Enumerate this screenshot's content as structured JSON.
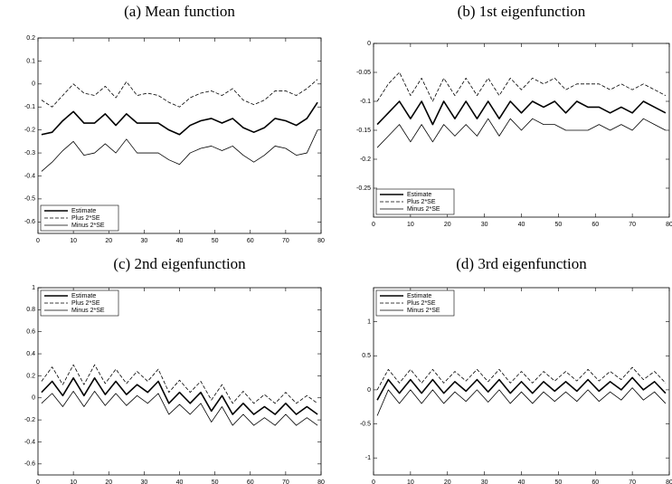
{
  "chart_data": [
    {
      "type": "line",
      "title": "(a) Mean function",
      "x": [
        1,
        4,
        7,
        10,
        13,
        16,
        19,
        22,
        25,
        28,
        31,
        34,
        37,
        40,
        43,
        46,
        49,
        52,
        55,
        58,
        61,
        64,
        67,
        70,
        73,
        76,
        79
      ],
      "xlim": [
        0,
        80
      ],
      "xticks": [
        0,
        10,
        20,
        30,
        40,
        50,
        60,
        70,
        80
      ],
      "ylim": [
        -0.65,
        0.2
      ],
      "yticks": [
        -0.6,
        -0.5,
        -0.4,
        -0.3,
        -0.2,
        -0.1,
        0,
        0.1,
        0.2
      ],
      "legend": "lower left",
      "series": [
        {
          "name": "Estimate",
          "color": "#000000",
          "line_style": "solid",
          "line_width": 1.6,
          "values": [
            -0.22,
            -0.21,
            -0.16,
            -0.12,
            -0.17,
            -0.17,
            -0.13,
            -0.18,
            -0.13,
            -0.17,
            -0.17,
            -0.17,
            -0.2,
            -0.22,
            -0.18,
            -0.16,
            -0.15,
            -0.17,
            -0.15,
            -0.19,
            -0.21,
            -0.19,
            -0.15,
            -0.16,
            -0.18,
            -0.15,
            -0.08
          ]
        },
        {
          "name": "Plus 2*SE",
          "color": "#000000",
          "line_style": "dashed",
          "line_width": 0.8,
          "values": [
            -0.07,
            -0.1,
            -0.05,
            0.0,
            -0.04,
            -0.05,
            -0.01,
            -0.06,
            0.01,
            -0.05,
            -0.04,
            -0.05,
            -0.08,
            -0.1,
            -0.06,
            -0.04,
            -0.03,
            -0.05,
            -0.02,
            -0.07,
            -0.09,
            -0.07,
            -0.03,
            -0.03,
            -0.05,
            -0.02,
            0.02
          ]
        },
        {
          "name": "Minus 2*SE",
          "color": "#000000",
          "line_style": "solid",
          "line_width": 0.8,
          "values": [
            -0.38,
            -0.34,
            -0.29,
            -0.25,
            -0.31,
            -0.3,
            -0.26,
            -0.3,
            -0.24,
            -0.3,
            -0.3,
            -0.3,
            -0.33,
            -0.35,
            -0.3,
            -0.28,
            -0.27,
            -0.29,
            -0.27,
            -0.31,
            -0.34,
            -0.31,
            -0.27,
            -0.28,
            -0.31,
            -0.3,
            -0.2
          ]
        }
      ]
    },
    {
      "type": "line",
      "title": "(b) 1st eigenfunction",
      "x": [
        1,
        4,
        7,
        10,
        13,
        16,
        19,
        22,
        25,
        28,
        31,
        34,
        37,
        40,
        43,
        46,
        49,
        52,
        55,
        58,
        61,
        64,
        67,
        70,
        73,
        76,
        79
      ],
      "xlim": [
        0,
        80
      ],
      "xticks": [
        0,
        10,
        20,
        30,
        40,
        50,
        60,
        70,
        80
      ],
      "ylim": [
        -0.3,
        0
      ],
      "yticks": [
        -0.25,
        -0.2,
        -0.15,
        -0.1,
        -0.05,
        0
      ],
      "legend": "lower left",
      "series": [
        {
          "name": "Estimate",
          "color": "#000000",
          "line_style": "solid",
          "line_width": 1.6,
          "values": [
            -0.14,
            -0.12,
            -0.1,
            -0.13,
            -0.1,
            -0.14,
            -0.1,
            -0.13,
            -0.1,
            -0.13,
            -0.1,
            -0.13,
            -0.1,
            -0.12,
            -0.1,
            -0.11,
            -0.1,
            -0.12,
            -0.1,
            -0.11,
            -0.11,
            -0.12,
            -0.11,
            -0.12,
            -0.1,
            -0.11,
            -0.12
          ]
        },
        {
          "name": "Plus 2*SE",
          "color": "#000000",
          "line_style": "dashed",
          "line_width": 0.8,
          "values": [
            -0.1,
            -0.07,
            -0.05,
            -0.09,
            -0.06,
            -0.1,
            -0.06,
            -0.09,
            -0.06,
            -0.09,
            -0.06,
            -0.09,
            -0.06,
            -0.08,
            -0.06,
            -0.07,
            -0.06,
            -0.08,
            -0.07,
            -0.07,
            -0.07,
            -0.08,
            -0.07,
            -0.08,
            -0.07,
            -0.08,
            -0.09
          ]
        },
        {
          "name": "Minus 2*SE",
          "color": "#000000",
          "line_style": "solid",
          "line_width": 0.8,
          "values": [
            -0.18,
            -0.16,
            -0.14,
            -0.17,
            -0.14,
            -0.17,
            -0.14,
            -0.16,
            -0.14,
            -0.16,
            -0.13,
            -0.16,
            -0.13,
            -0.15,
            -0.13,
            -0.14,
            -0.14,
            -0.15,
            -0.15,
            -0.15,
            -0.14,
            -0.15,
            -0.14,
            -0.15,
            -0.13,
            -0.14,
            -0.15
          ]
        }
      ]
    },
    {
      "type": "line",
      "title": "(c) 2nd eigenfunction",
      "x": [
        1,
        4,
        7,
        10,
        13,
        16,
        19,
        22,
        25,
        28,
        31,
        34,
        37,
        40,
        43,
        46,
        49,
        52,
        55,
        58,
        61,
        64,
        67,
        70,
        73,
        76,
        79
      ],
      "xlim": [
        0,
        80
      ],
      "xticks": [
        0,
        10,
        20,
        30,
        40,
        50,
        60,
        70,
        80
      ],
      "ylim": [
        -0.7,
        1
      ],
      "yticks": [
        -0.6,
        -0.4,
        -0.2,
        0,
        0.2,
        0.4,
        0.6,
        0.8,
        1
      ],
      "legend": "upper left",
      "series": [
        {
          "name": "Estimate",
          "color": "#000000",
          "line_style": "solid",
          "line_width": 1.6,
          "values": [
            0.05,
            0.15,
            0.02,
            0.18,
            0.02,
            0.18,
            0.03,
            0.15,
            0.03,
            0.12,
            0.05,
            0.15,
            -0.05,
            0.05,
            -0.05,
            0.05,
            -0.12,
            0.02,
            -0.15,
            -0.05,
            -0.15,
            -0.08,
            -0.15,
            -0.05,
            -0.15,
            -0.08,
            -0.15
          ]
        },
        {
          "name": "Plus 2*SE",
          "color": "#000000",
          "line_style": "dashed",
          "line_width": 0.8,
          "values": [
            0.15,
            0.28,
            0.12,
            0.3,
            0.12,
            0.3,
            0.13,
            0.26,
            0.13,
            0.24,
            0.15,
            0.26,
            0.05,
            0.16,
            0.05,
            0.15,
            -0.02,
            0.12,
            -0.05,
            0.06,
            -0.05,
            0.03,
            -0.05,
            0.05,
            -0.05,
            0.02,
            -0.05
          ]
        },
        {
          "name": "Minus 2*SE",
          "color": "#000000",
          "line_style": "solid",
          "line_width": 0.8,
          "values": [
            -0.05,
            0.04,
            -0.08,
            0.06,
            -0.08,
            0.06,
            -0.07,
            0.04,
            -0.07,
            0.02,
            -0.05,
            0.04,
            -0.15,
            -0.06,
            -0.15,
            -0.05,
            -0.22,
            -0.08,
            -0.25,
            -0.15,
            -0.25,
            -0.18,
            -0.25,
            -0.15,
            -0.25,
            -0.18,
            -0.25
          ]
        }
      ]
    },
    {
      "type": "line",
      "title": "(d) 3rd eigenfunction",
      "x": [
        1,
        4,
        7,
        10,
        13,
        16,
        19,
        22,
        25,
        28,
        31,
        34,
        37,
        40,
        43,
        46,
        49,
        52,
        55,
        58,
        61,
        64,
        67,
        70,
        73,
        76,
        79
      ],
      "xlim": [
        0,
        80
      ],
      "xticks": [
        0,
        10,
        20,
        30,
        40,
        50,
        60,
        70,
        80
      ],
      "ylim": [
        -1.25,
        1.5
      ],
      "yticks": [
        -1,
        -0.5,
        0,
        0.5,
        1
      ],
      "legend": "upper left",
      "series": [
        {
          "name": "Estimate",
          "color": "#000000",
          "line_style": "solid",
          "line_width": 1.6,
          "values": [
            -0.15,
            0.15,
            -0.05,
            0.15,
            -0.05,
            0.15,
            -0.05,
            0.12,
            -0.02,
            0.15,
            -0.03,
            0.15,
            -0.05,
            0.12,
            -0.05,
            0.12,
            -0.02,
            0.12,
            -0.02,
            0.15,
            -0.02,
            0.12,
            0.0,
            0.18,
            0.0,
            0.12,
            -0.05
          ]
        },
        {
          "name": "Plus 2*SE",
          "color": "#000000",
          "line_style": "dashed",
          "line_width": 0.8,
          "values": [
            0.0,
            0.3,
            0.1,
            0.3,
            0.1,
            0.3,
            0.1,
            0.27,
            0.13,
            0.3,
            0.12,
            0.3,
            0.1,
            0.27,
            0.1,
            0.27,
            0.13,
            0.27,
            0.13,
            0.3,
            0.13,
            0.27,
            0.15,
            0.33,
            0.15,
            0.27,
            0.1
          ]
        },
        {
          "name": "Minus 2*SE",
          "color": "#000000",
          "line_style": "solid",
          "line_width": 0.8,
          "values": [
            -0.38,
            0.0,
            -0.2,
            0.0,
            -0.2,
            0.0,
            -0.2,
            -0.03,
            -0.17,
            0.0,
            -0.18,
            0.0,
            -0.2,
            -0.03,
            -0.2,
            -0.03,
            -0.17,
            -0.03,
            -0.17,
            0.0,
            -0.17,
            -0.03,
            -0.15,
            0.03,
            -0.15,
            -0.03,
            -0.2
          ]
        }
      ]
    }
  ]
}
